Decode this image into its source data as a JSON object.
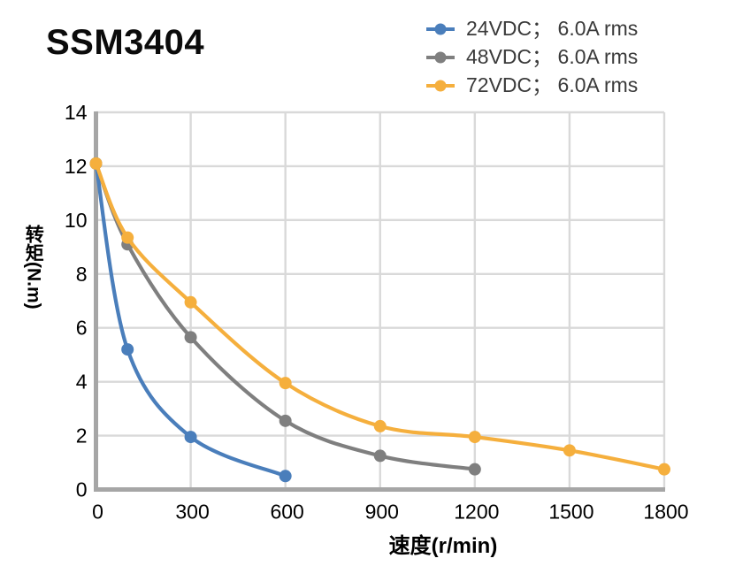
{
  "chart_data": {
    "type": "line",
    "title": "SSM3404",
    "xlabel": "速度(r/min)",
    "ylabel": "转矩(N.m)",
    "xlim": [
      0,
      1800
    ],
    "ylim": [
      0,
      14
    ],
    "xticks": [
      0,
      300,
      600,
      900,
      1200,
      1500,
      1800
    ],
    "yticks": [
      0,
      2,
      4,
      6,
      8,
      10,
      12,
      14
    ],
    "grid": true,
    "legend_position": "top-right",
    "smooth": true,
    "series": [
      {
        "name": "24VDC； 6.0A rms",
        "color": "#4A7EBB",
        "x": [
          0,
          100,
          300,
          600
        ],
        "y": [
          12.1,
          5.2,
          1.95,
          0.5
        ]
      },
      {
        "name": "48VDC； 6.0A rms",
        "color": "#7F7F7F",
        "x": [
          0,
          100,
          300,
          600,
          900,
          1200
        ],
        "y": [
          12.1,
          9.1,
          5.65,
          2.55,
          1.25,
          0.75
        ]
      },
      {
        "name": "72VDC； 6.0A rms",
        "color": "#F5AF3D",
        "x": [
          0,
          100,
          300,
          600,
          900,
          1200,
          1500,
          1800
        ],
        "y": [
          12.1,
          9.35,
          6.95,
          3.95,
          2.35,
          1.95,
          1.45,
          0.75
        ]
      }
    ]
  },
  "colors": {
    "axis": "#A6A6A6",
    "grid": "#D9D9D9",
    "tick_text": "#000000",
    "legend_text": "#3A3A3A",
    "title_text": "#0B0B0B"
  }
}
